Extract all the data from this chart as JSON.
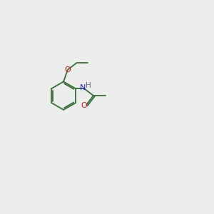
{
  "bg_color": "#eceeed",
  "atom_colors": {
    "C": "#3a6b3a",
    "N": "#1a1aee",
    "O": "#dd1111",
    "H": "#707070"
  },
  "bond_color": "#3a6b3a",
  "figsize": [
    3.0,
    3.0
  ],
  "dpi": 100,
  "lw": 1.3,
  "fs": 7.5
}
